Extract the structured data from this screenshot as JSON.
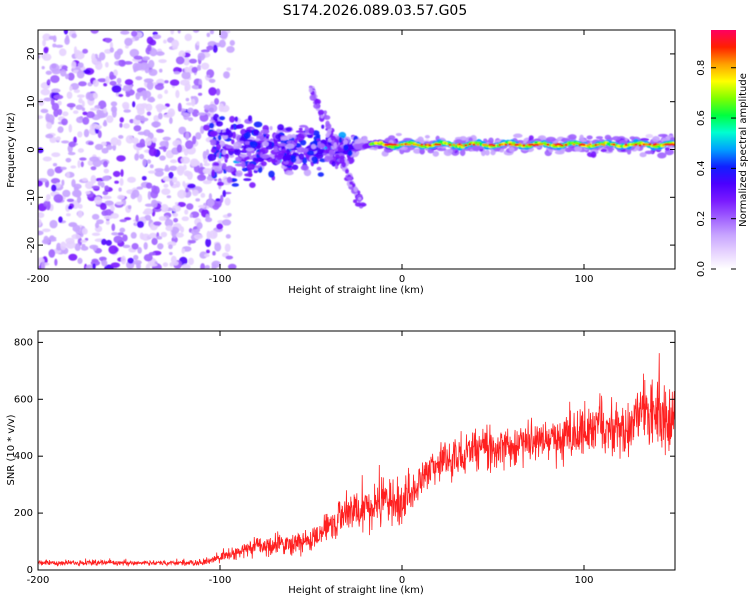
{
  "title": "S174.2026.089.03.57.G05",
  "chart_data": [
    {
      "type": "heatmap",
      "name": "spectrogram",
      "xlabel": "Height of straight line (km)",
      "ylabel": "Frequency (Hz)",
      "xlim": [
        -200,
        150
      ],
      "ylim": [
        -25,
        25
      ],
      "xticks": [
        -200,
        -100,
        0,
        100
      ],
      "yticks": [
        -20,
        -10,
        0,
        10,
        20
      ],
      "colorbar": {
        "label": "Normalized spectral amplitude",
        "range": [
          0,
          0.95
        ],
        "ticks": [
          0.0,
          0.2,
          0.4,
          0.6,
          0.8
        ],
        "colormap": [
          "#ffffff",
          "#e6d2ff",
          "#c7a4ff",
          "#a060ff",
          "#7a1aff",
          "#4b00ff",
          "#1020ff",
          "#00a0ff",
          "#00ffd0",
          "#00ff40",
          "#80ff00",
          "#ffff00",
          "#ffa000",
          "#ff2000",
          "#ff0060"
        ]
      },
      "features": [
        {
          "name": "noise-region",
          "x_range": [
            -200,
            -100
          ],
          "freq_range": [
            -25,
            25
          ],
          "amplitude": 0.1
        },
        {
          "name": "transition-region",
          "x_range": [
            -105,
            -25
          ],
          "freq_range": [
            -10,
            10
          ],
          "amplitude": 0.25
        },
        {
          "name": "descending-streak",
          "x_start": -50,
          "x_end": -22,
          "freq_start": 13,
          "freq_end": -12,
          "amplitude": 0.2
        },
        {
          "name": "carrier-line",
          "x_range": [
            -25,
            150
          ],
          "freq": 1,
          "amplitude": 0.9
        }
      ]
    },
    {
      "type": "line",
      "name": "snr",
      "xlabel": "Height of straight line (km)",
      "ylabel": "SNR (10 * v/v)",
      "xlim": [
        -200,
        150
      ],
      "ylim": [
        0,
        840
      ],
      "xticks": [
        -200,
        -100,
        0,
        100
      ],
      "yticks": [
        0,
        200,
        400,
        600,
        800
      ],
      "color": "#ff2020",
      "trend": [
        {
          "x": -200,
          "y": 25,
          "spread": 15
        },
        {
          "x": -110,
          "y": 25,
          "spread": 15
        },
        {
          "x": -80,
          "y": 80,
          "spread": 60
        },
        {
          "x": -50,
          "y": 100,
          "spread": 70
        },
        {
          "x": -40,
          "y": 160,
          "spread": 90
        },
        {
          "x": -25,
          "y": 220,
          "spread": 140
        },
        {
          "x": -15,
          "y": 230,
          "spread": 150
        },
        {
          "x": 0,
          "y": 230,
          "spread": 130
        },
        {
          "x": 20,
          "y": 380,
          "spread": 110
        },
        {
          "x": 50,
          "y": 430,
          "spread": 120
        },
        {
          "x": 100,
          "y": 480,
          "spread": 150
        },
        {
          "x": 130,
          "y": 520,
          "spread": 200
        },
        {
          "x": 150,
          "y": 550,
          "spread": 220
        }
      ]
    }
  ]
}
